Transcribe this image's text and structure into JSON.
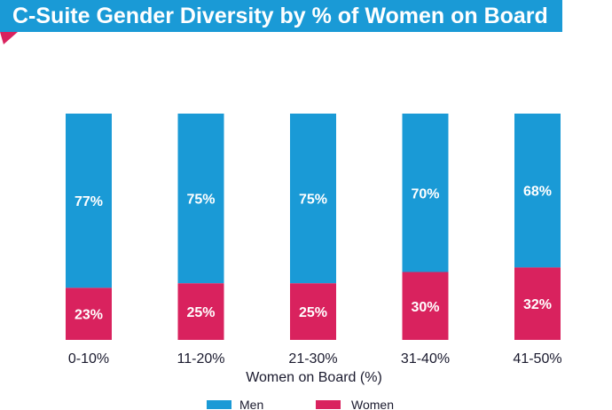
{
  "title": "C-Suite Gender Diversity by % of Women on Board",
  "colors": {
    "banner": "#1a9ad6",
    "men": "#1a9ad6",
    "women": "#d9225e",
    "accent_tab": "#d9225e"
  },
  "chart_data": {
    "type": "bar",
    "stacked": true,
    "categories": [
      "0-10%",
      "11-20%",
      "21-30%",
      "31-40%",
      "41-50%"
    ],
    "series": [
      {
        "name": "Women",
        "values": [
          23,
          25,
          25,
          30,
          32
        ],
        "labels": [
          "23%",
          "25%",
          "25%",
          "30%",
          "32%"
        ],
        "color": "#d9225e"
      },
      {
        "name": "Men",
        "values": [
          77,
          75,
          75,
          70,
          68
        ],
        "labels": [
          "77%",
          "75%",
          "75%",
          "70%",
          "68%"
        ],
        "color": "#1a9ad6"
      }
    ],
    "xlabel": "Women on Board (%)",
    "ylabel": "",
    "ylim": [
      0,
      100
    ],
    "grid": false,
    "legend": {
      "position": "bottom",
      "entries": [
        "Men",
        "Women"
      ]
    }
  }
}
